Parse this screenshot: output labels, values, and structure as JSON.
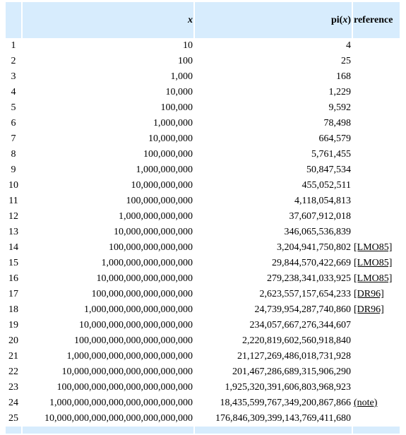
{
  "table": {
    "headers": {
      "number": "",
      "x": "x",
      "pi_prefix": "pi(",
      "pi_var": "x",
      "pi_suffix": ")",
      "reference": "reference"
    },
    "rows": [
      {
        "n": "1",
        "x": "10",
        "pi": "4",
        "ref": ""
      },
      {
        "n": "2",
        "x": "100",
        "pi": "25",
        "ref": ""
      },
      {
        "n": "3",
        "x": "1,000",
        "pi": "168",
        "ref": ""
      },
      {
        "n": "4",
        "x": "10,000",
        "pi": "1,229",
        "ref": ""
      },
      {
        "n": "5",
        "x": "100,000",
        "pi": "9,592",
        "ref": ""
      },
      {
        "n": "6",
        "x": "1,000,000",
        "pi": "78,498",
        "ref": ""
      },
      {
        "n": "7",
        "x": "10,000,000",
        "pi": "664,579",
        "ref": ""
      },
      {
        "n": "8",
        "x": "100,000,000",
        "pi": "5,761,455",
        "ref": ""
      },
      {
        "n": "9",
        "x": "1,000,000,000",
        "pi": "50,847,534",
        "ref": ""
      },
      {
        "n": "10",
        "x": "10,000,000,000",
        "pi": "455,052,511",
        "ref": ""
      },
      {
        "n": "11",
        "x": "100,000,000,000",
        "pi": "4,118,054,813",
        "ref": ""
      },
      {
        "n": "12",
        "x": "1,000,000,000,000",
        "pi": "37,607,912,018",
        "ref": ""
      },
      {
        "n": "13",
        "x": "10,000,000,000,000",
        "pi": "346,065,536,839",
        "ref": ""
      },
      {
        "n": "14",
        "x": "100,000,000,000,000",
        "pi": "3,204,941,750,802",
        "ref": "[LMO85]"
      },
      {
        "n": "15",
        "x": "1,000,000,000,000,000",
        "pi": "29,844,570,422,669",
        "ref": "[LMO85]"
      },
      {
        "n": "16",
        "x": "10,000,000,000,000,000",
        "pi": "279,238,341,033,925",
        "ref": "[LMO85]"
      },
      {
        "n": "17",
        "x": "100,000,000,000,000,000",
        "pi": "2,623,557,157,654,233",
        "ref": "[DR96]"
      },
      {
        "n": "18",
        "x": "1,000,000,000,000,000,000",
        "pi": "24,739,954,287,740,860",
        "ref": "[DR96]"
      },
      {
        "n": "19",
        "x": "10,000,000,000,000,000,000",
        "pi": "234,057,667,276,344,607",
        "ref": ""
      },
      {
        "n": "20",
        "x": "100,000,000,000,000,000,000",
        "pi": "2,220,819,602,560,918,840",
        "ref": ""
      },
      {
        "n": "21",
        "x": "1,000,000,000,000,000,000,000",
        "pi": "21,127,269,486,018,731,928",
        "ref": ""
      },
      {
        "n": "22",
        "x": "10,000,000,000,000,000,000,000",
        "pi": "201,467,286,689,315,906,290",
        "ref": ""
      },
      {
        "n": "23",
        "x": "100,000,000,000,000,000,000,000",
        "pi": "1,925,320,391,606,803,968,923",
        "ref": ""
      },
      {
        "n": "24",
        "x": "1,000,000,000,000,000,000,000,000",
        "pi": "18,435,599,767,349,200,867,866",
        "ref": "(note)"
      },
      {
        "n": "25",
        "x": "10,000,000,000,000,000,000,000,000",
        "pi": "176,846,309,399,143,769,411,680",
        "ref": ""
      }
    ]
  },
  "colors": {
    "header_background": "#d7ecfd",
    "text": "#000000",
    "page_background": "#ffffff"
  }
}
